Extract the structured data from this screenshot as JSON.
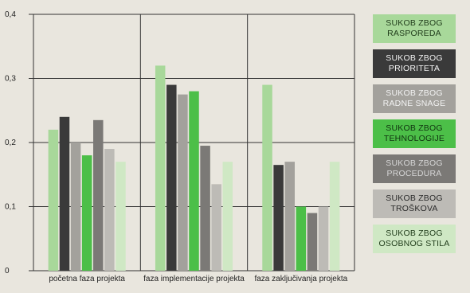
{
  "chart_data": {
    "type": "bar",
    "categories": [
      "početna faza projekta",
      "faza  implementacije projekta",
      "faza  zaključivanja projekta"
    ],
    "ylim": [
      0,
      0.4
    ],
    "yticks": [
      "0",
      "0,1",
      "0,2",
      "0,3",
      "0,4"
    ],
    "grid": true,
    "legend_position": "right",
    "series": [
      {
        "name": "SUKOB ZBOG RASPOREDA",
        "color": "#a8d89a",
        "text_color": "#1f3b1a",
        "values": [
          0.22,
          0.32,
          0.29
        ]
      },
      {
        "name": "SUKOB ZBOG PRIORITETA",
        "color": "#3a3a3a",
        "text_color": "#f2f2f2",
        "values": [
          0.24,
          0.29,
          0.165
        ]
      },
      {
        "name": "SUKOB ZBOG RADNE SNAGE",
        "color": "#a3a19c",
        "text_color": "#f2f2f2",
        "values": [
          0.2,
          0.275,
          0.17
        ]
      },
      {
        "name": "SUKOB ZBOG TEHNOLOGIJE",
        "color": "#4cbf48",
        "text_color": "#103310",
        "values": [
          0.18,
          0.28,
          0.1
        ]
      },
      {
        "name": "SUKOB ZBOG PROCEDURA",
        "color": "#7b7976",
        "text_color": "#d6d6d6",
        "values": [
          0.235,
          0.195,
          0.09
        ]
      },
      {
        "name": "SUKOB ZBOG TROŠKOVA",
        "color": "#bdbbb6",
        "text_color": "#2a2a2a",
        "values": [
          0.19,
          0.135,
          0.1
        ]
      },
      {
        "name": "SUKOB ZBOG OSOBNOG STILA",
        "color": "#cfe8c4",
        "text_color": "#1f3b1a",
        "values": [
          0.17,
          0.17,
          0.17
        ]
      }
    ]
  }
}
